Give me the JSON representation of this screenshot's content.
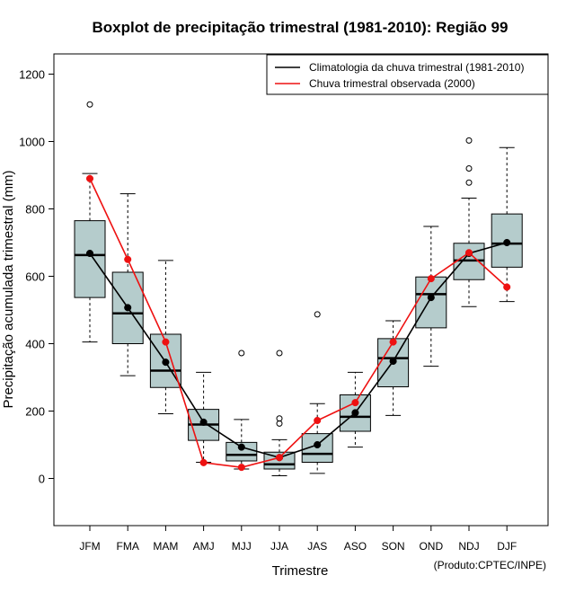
{
  "chart_data": {
    "type": "boxplot",
    "title": "Boxplot de precipitação trimestral (1981-2010): Região 99",
    "xlabel": "Trimestre",
    "ylabel": "Precipitação acumulada trimestral (mm)",
    "ylim": [
      -140,
      1260
    ],
    "yticks": [
      0,
      200,
      400,
      600,
      800,
      1000,
      1200
    ],
    "credit": "(Produto:CPTEC/INPE)",
    "box_color": "#b5cccc",
    "categories": [
      "JFM",
      "FMA",
      "MAM",
      "AMJ",
      "MJJ",
      "JJA",
      "JAS",
      "ASO",
      "SON",
      "OND",
      "NDJ",
      "DJF"
    ],
    "boxes": [
      {
        "whisker_low": 405,
        "q1": 537,
        "median": 663,
        "q3": 765,
        "whisker_high": 905,
        "outliers": [
          1110
        ]
      },
      {
        "whisker_low": 305,
        "q1": 400,
        "median": 490,
        "q3": 612,
        "whisker_high": 845,
        "outliers": []
      },
      {
        "whisker_low": 192,
        "q1": 270,
        "median": 320,
        "q3": 428,
        "whisker_high": 647,
        "outliers": []
      },
      {
        "whisker_low": 48,
        "q1": 113,
        "median": 160,
        "q3": 205,
        "whisker_high": 315,
        "outliers": []
      },
      {
        "whisker_low": 28,
        "q1": 52,
        "median": 70,
        "q3": 107,
        "whisker_high": 175,
        "outliers": [
          372
        ]
      },
      {
        "whisker_low": 8,
        "q1": 28,
        "median": 42,
        "q3": 78,
        "whisker_high": 115,
        "outliers": [
          163,
          178,
          372
        ]
      },
      {
        "whisker_low": 15,
        "q1": 48,
        "median": 73,
        "q3": 133,
        "whisker_high": 222,
        "outliers": [
          487
        ]
      },
      {
        "whisker_low": 93,
        "q1": 140,
        "median": 183,
        "q3": 248,
        "whisker_high": 315,
        "outliers": []
      },
      {
        "whisker_low": 187,
        "q1": 272,
        "median": 357,
        "q3": 415,
        "whisker_high": 468,
        "outliers": []
      },
      {
        "whisker_low": 333,
        "q1": 447,
        "median": 547,
        "q3": 598,
        "whisker_high": 748,
        "outliers": []
      },
      {
        "whisker_low": 510,
        "q1": 590,
        "median": 647,
        "q3": 698,
        "whisker_high": 832,
        "outliers": [
          878,
          920,
          1003
        ]
      },
      {
        "whisker_low": 525,
        "q1": 627,
        "median": 697,
        "q3": 785,
        "whisker_high": 982,
        "outliers": []
      }
    ],
    "series": [
      {
        "name": "Climatologia da chuva trimestral (1981-2010)",
        "color": "#000000",
        "values": [
          668,
          507,
          345,
          167,
          93,
          62,
          100,
          195,
          348,
          537,
          668,
          700
        ]
      },
      {
        "name": "Chuva trimestral observada (2000)",
        "color": "#ee1111",
        "values": [
          890,
          650,
          405,
          47,
          33,
          62,
          172,
          225,
          405,
          593,
          670,
          568
        ]
      }
    ]
  }
}
